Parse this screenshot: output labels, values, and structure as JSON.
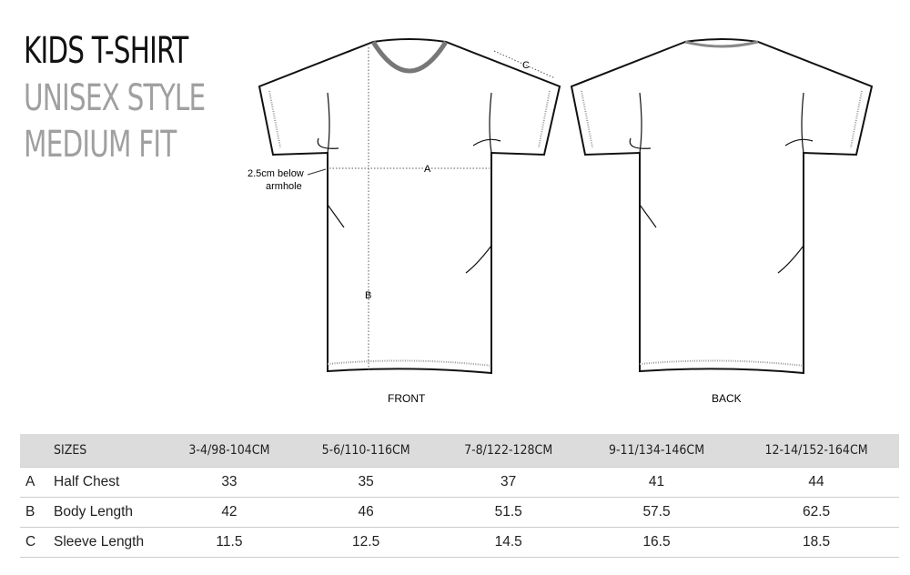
{
  "title": {
    "line1": "KIDS T-SHIRT",
    "line2": "UNISEX STYLE",
    "line3": "MEDIUM FIT"
  },
  "diagram": {
    "front_label": "FRONT",
    "back_label": "BACK",
    "measure_a": "A",
    "measure_b": "B",
    "measure_c": "C",
    "note_line1": "2.5cm below",
    "note_line2": "armhole"
  },
  "table": {
    "header": [
      "",
      "SIZES",
      "3-4/98-104CM",
      "5-6/110-116CM",
      "7-8/122-128CM",
      "9-11/134-146CM",
      "12-14/152-164CM"
    ],
    "rows": [
      [
        "A",
        "Half Chest",
        "33",
        "35",
        "37",
        "41",
        "44"
      ],
      [
        "B",
        "Body Length",
        "42",
        "46",
        "51.5",
        "57.5",
        "62.5"
      ],
      [
        "C",
        "Sleeve Length",
        "11.5",
        "12.5",
        "14.5",
        "16.5",
        "18.5"
      ]
    ]
  },
  "colors": {
    "title": "#111111",
    "subtitle": "#a0a0a0",
    "header_bg": "#dcdcdc"
  }
}
